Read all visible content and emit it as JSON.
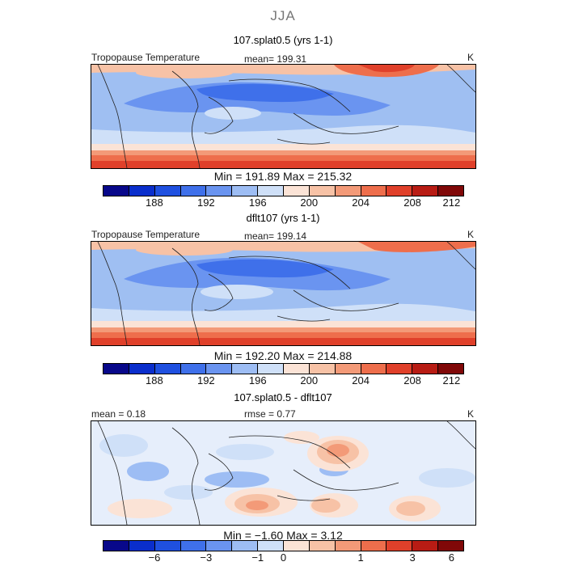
{
  "season": "JJA",
  "panels": [
    {
      "title": "107.splat0.5 (yrs 1-1)",
      "field": "Tropopause Temperature",
      "stat": "mean=  199.31",
      "units": "K",
      "min_max": "Min = 191.89  Max = 215.32"
    },
    {
      "title": "dflt107 (yrs 1-1)",
      "field": "Tropopause Temperature",
      "stat": "mean=  199.14",
      "units": "K",
      "min_max": "Min = 192.20  Max = 214.88"
    },
    {
      "title": "107.splat0.5 - dflt107",
      "mean_label": "mean =   0.18",
      "rmse_label": "rmse =    0.77",
      "units": "K",
      "min_max": "Min =  −1.60  Max =    3.12"
    }
  ],
  "chart_data": [
    {
      "type": "heatmap",
      "title": "107.splat0.5 (yrs 1-1)",
      "field": "Tropopause Temperature",
      "units": "K",
      "mean": 199.31,
      "min": 191.89,
      "max": 215.32,
      "colorbar_ticks": [
        "188",
        "192",
        "196",
        "200",
        "204",
        "208",
        "212"
      ]
    },
    {
      "type": "heatmap",
      "title": "dflt107 (yrs 1-1)",
      "field": "Tropopause Temperature",
      "units": "K",
      "mean": 199.14,
      "min": 192.2,
      "max": 214.88,
      "colorbar_ticks": [
        "188",
        "192",
        "196",
        "200",
        "204",
        "208",
        "212"
      ]
    },
    {
      "type": "heatmap",
      "title": "107.splat0.5 - dflt107",
      "units": "K",
      "mean": 0.18,
      "rmse": 0.77,
      "min": -1.6,
      "max": 3.12,
      "colorbar_ticks": [
        "−6",
        "−3",
        "−1",
        "0",
        "1",
        "3",
        "6"
      ]
    }
  ],
  "colorbar_colors": [
    "#08088a",
    "#0a2ecc",
    "#1f50e0",
    "#3f70ea",
    "#6a94f0",
    "#9dbdf4",
    "#cfe0f8",
    "#fbe3d6",
    "#f7c2a6",
    "#f39a78",
    "#ee6e4c",
    "#e0402a",
    "#b81c14",
    "#800808"
  ]
}
